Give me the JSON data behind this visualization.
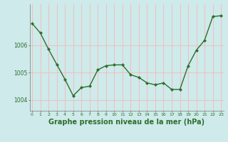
{
  "x": [
    0,
    1,
    2,
    3,
    4,
    5,
    6,
    7,
    8,
    9,
    10,
    11,
    12,
    13,
    14,
    15,
    16,
    17,
    18,
    19,
    20,
    21,
    22,
    23
  ],
  "y": [
    1006.8,
    1006.45,
    1005.85,
    1005.3,
    1004.75,
    1004.15,
    1004.45,
    1004.5,
    1005.1,
    1005.25,
    1005.28,
    1005.28,
    1004.92,
    1004.82,
    1004.62,
    1004.55,
    1004.62,
    1004.38,
    1004.38,
    1005.25,
    1005.82,
    1006.18,
    1007.05,
    1007.08
  ],
  "line_color": "#2d6e2d",
  "marker": "D",
  "marker_size": 2.2,
  "linewidth": 1.0,
  "background_color": "#ceeaea",
  "grid_color": "#f5b8b8",
  "axis_color": "#888888",
  "xlabel": "Graphe pression niveau de la mer (hPa)",
  "xlabel_fontsize": 7,
  "xlabel_color": "#2d6e2d",
  "ytick_labels": [
    "1004",
    "1005",
    "1006"
  ],
  "ytick_values": [
    1004,
    1005,
    1006
  ],
  "xtick_labels": [
    "0",
    "1",
    "2",
    "3",
    "4",
    "5",
    "6",
    "7",
    "8",
    "9",
    "10",
    "11",
    "12",
    "13",
    "14",
    "15",
    "16",
    "17",
    "18",
    "19",
    "20",
    "21",
    "22",
    "23"
  ],
  "ylim": [
    1003.6,
    1007.5
  ],
  "xlim": [
    -0.3,
    23.3
  ]
}
